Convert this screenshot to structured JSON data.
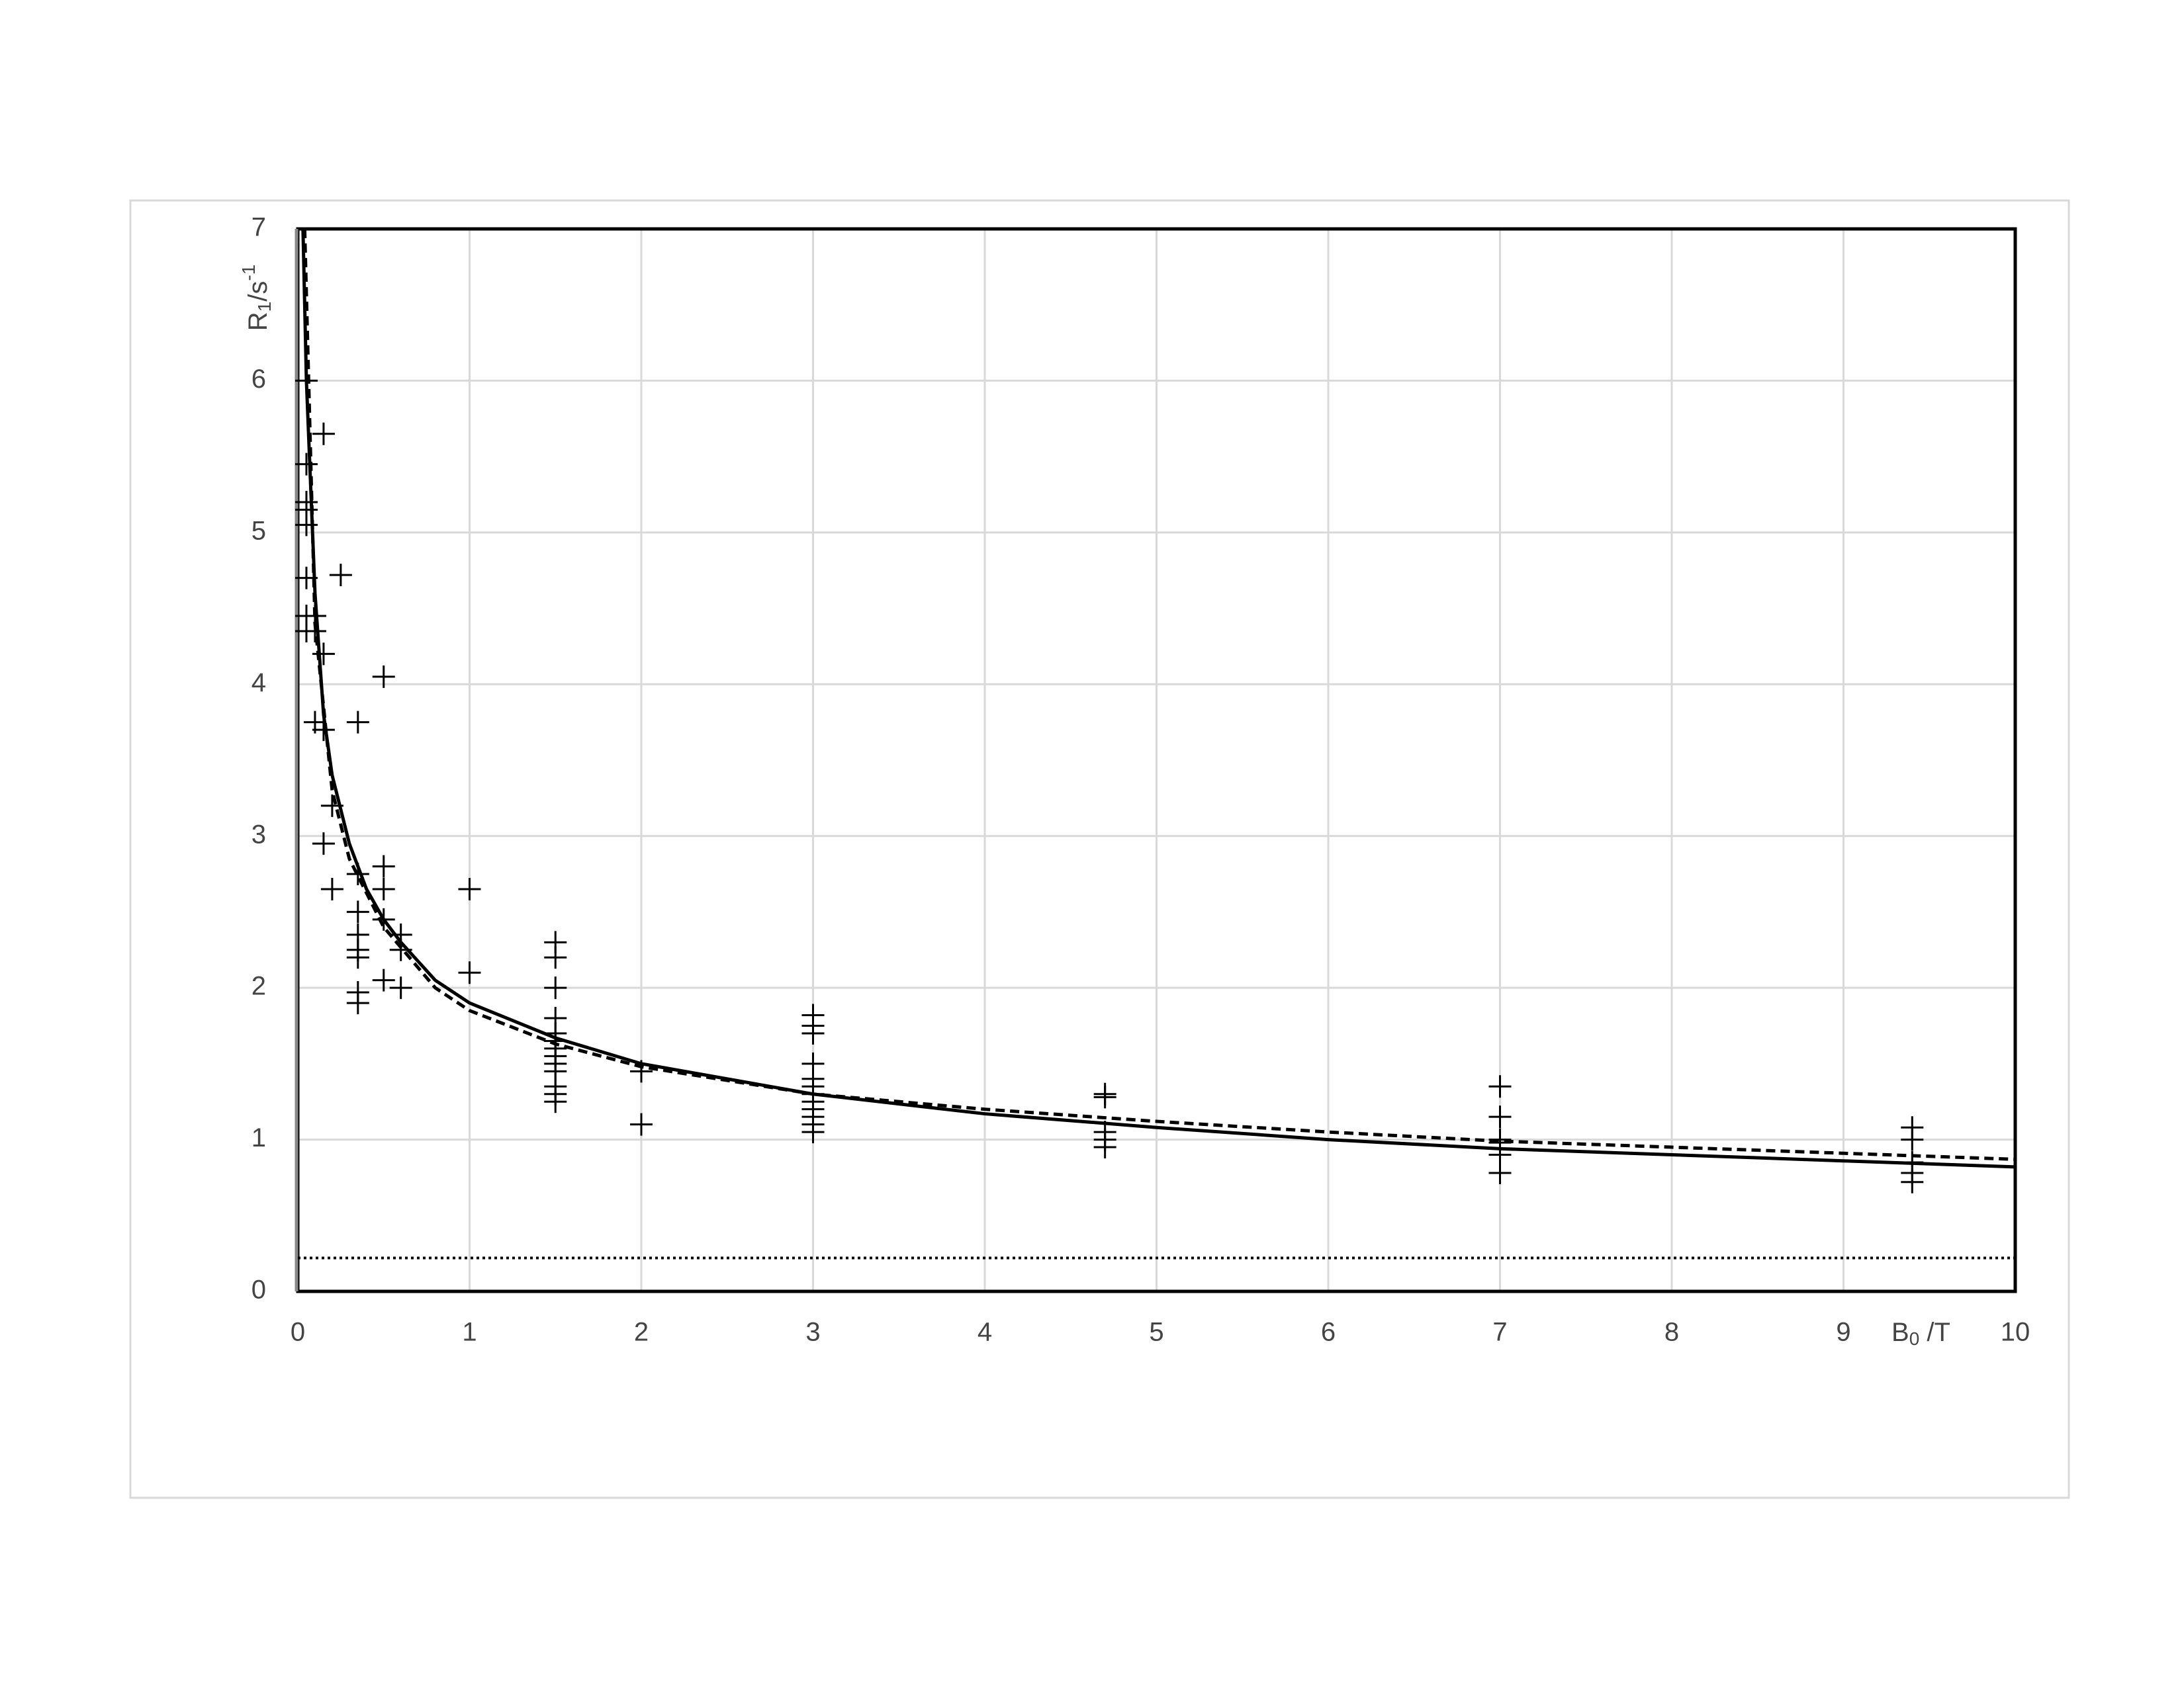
{
  "chart_data": {
    "type": "scatter",
    "xlabel": {
      "main": "B",
      "sub": "0",
      "rest": " /T"
    },
    "ylabel": {
      "main": "R",
      "sub": "1",
      "mid": "/s",
      "sup": "-1"
    },
    "xlim": [
      0,
      10
    ],
    "ylim": [
      0,
      7
    ],
    "xticks": [
      0,
      1,
      2,
      3,
      4,
      5,
      6,
      7,
      8,
      9,
      10
    ],
    "yticks": [
      0,
      1,
      2,
      3,
      4,
      5,
      6,
      7
    ],
    "grid": true,
    "series": [
      {
        "type": "scatter",
        "color": "#000000",
        "x": [
          0.05,
          0.05,
          0.05,
          0.05,
          0.05,
          0.05,
          0.05,
          0.05,
          0.1,
          0.1,
          0.1,
          0.15,
          0.15,
          0.15,
          0.15,
          0.2,
          0.2,
          0.25,
          0.35,
          0.35,
          0.35,
          0.35,
          0.35,
          0.35,
          0.35,
          0.35,
          0.5,
          0.5,
          0.5,
          0.5,
          0.5,
          0.6,
          0.6,
          0.6,
          1,
          1,
          1.5,
          1.5,
          1.5,
          1.5,
          1.5,
          1.5,
          1.5,
          1.5,
          1.5,
          1.5,
          1.5,
          1.5,
          1.5,
          2,
          2,
          3,
          3,
          3,
          3,
          3,
          3,
          3,
          3,
          3,
          3,
          3,
          3,
          4.7,
          4.7,
          4.7,
          4.7,
          4.7,
          7,
          7,
          7,
          7,
          7,
          7,
          9.4,
          9.4,
          9.4,
          9.4,
          9.4
        ],
        "values": [
          6.0,
          5.45,
          5.2,
          5.15,
          5.05,
          4.7,
          4.45,
          4.35,
          4.45,
          4.35,
          3.75,
          5.65,
          4.2,
          3.7,
          2.95,
          3.2,
          2.65,
          4.72,
          3.75,
          2.75,
          2.5,
          2.35,
          2.25,
          2.2,
          1.97,
          1.9,
          4.05,
          2.8,
          2.65,
          2.45,
          2.05,
          2.35,
          2.25,
          2.0,
          2.65,
          2.1,
          2.3,
          2.2,
          2.0,
          1.8,
          1.7,
          1.65,
          1.6,
          1.55,
          1.5,
          1.45,
          1.35,
          1.3,
          1.25,
          1.45,
          1.1,
          1.82,
          1.75,
          1.7,
          1.5,
          1.4,
          1.35,
          1.3,
          1.25,
          1.2,
          1.15,
          1.1,
          1.05,
          1.3,
          1.28,
          1.05,
          1.0,
          0.95,
          1.35,
          1.15,
          1.0,
          0.98,
          0.9,
          0.78,
          1.08,
          1.0,
          0.85,
          0.78,
          0.72
        ]
      },
      {
        "type": "line",
        "style": "solid",
        "color": "#000000",
        "x": [
          0.03,
          0.05,
          0.1,
          0.15,
          0.2,
          0.3,
          0.4,
          0.5,
          0.6,
          0.8,
          1,
          1.5,
          2,
          3,
          4,
          5,
          6,
          7,
          8,
          9,
          10
        ],
        "values": [
          7,
          6.0,
          4.6,
          3.8,
          3.4,
          2.95,
          2.65,
          2.45,
          2.3,
          2.05,
          1.9,
          1.67,
          1.5,
          1.3,
          1.17,
          1.08,
          1.0,
          0.94,
          0.9,
          0.86,
          0.82
        ]
      },
      {
        "type": "line",
        "style": "dashed",
        "color": "#000000",
        "x": [
          0.04,
          0.1,
          0.2,
          0.3,
          0.5,
          0.8,
          1,
          1.5,
          2,
          3,
          4,
          5,
          6,
          7,
          8,
          9,
          10
        ],
        "values": [
          7,
          4.4,
          3.3,
          2.85,
          2.4,
          2.0,
          1.85,
          1.63,
          1.48,
          1.3,
          1.2,
          1.12,
          1.05,
          0.99,
          0.95,
          0.91,
          0.87
        ]
      },
      {
        "type": "line",
        "style": "dotted",
        "color": "#000000",
        "x": [
          0,
          10
        ],
        "values": [
          0.22,
          0.22
        ]
      }
    ]
  }
}
